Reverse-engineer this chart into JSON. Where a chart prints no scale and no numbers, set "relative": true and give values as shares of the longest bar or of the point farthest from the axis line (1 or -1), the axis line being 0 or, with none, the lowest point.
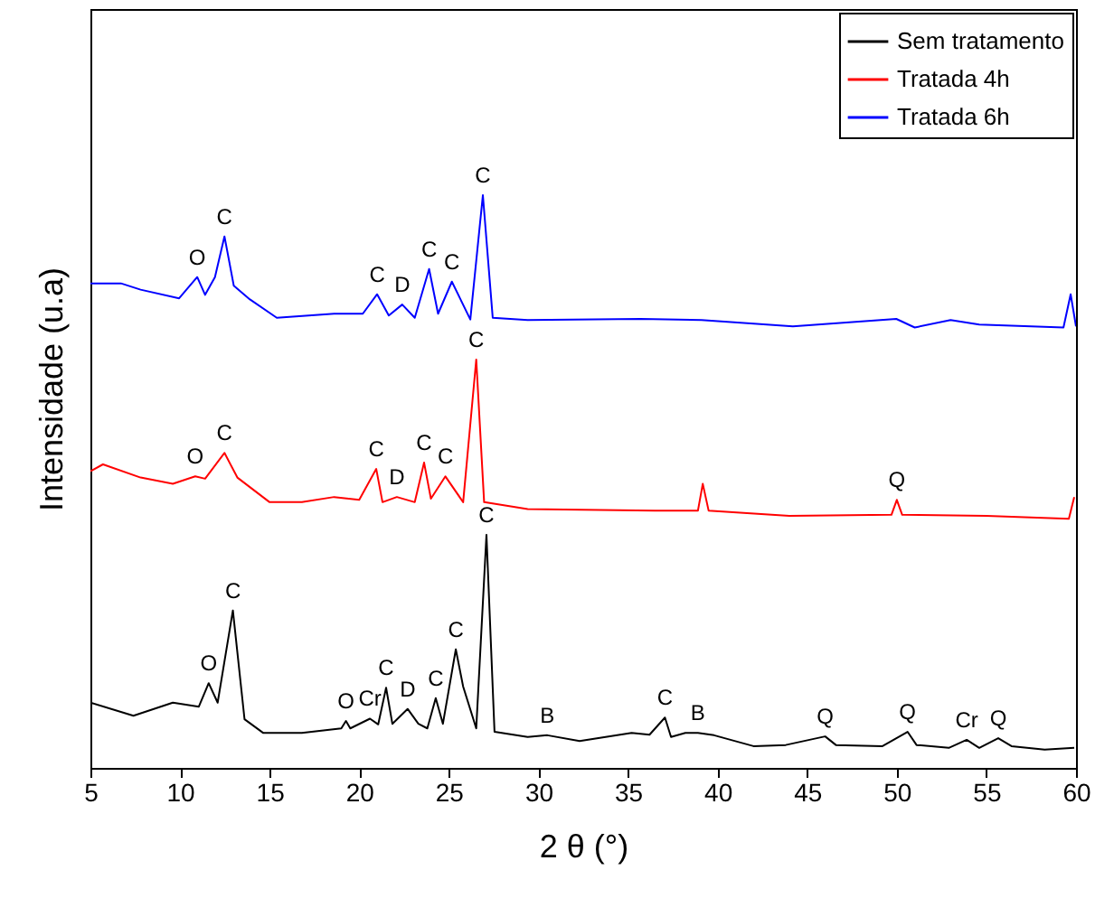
{
  "chart_data": {
    "type": "line",
    "relative": true,
    "xlabel": "2 θ (°)",
    "ylabel": "Intensidade (u.a)",
    "xlim": [
      5,
      60
    ],
    "xticks": [
      5,
      10,
      15,
      20,
      25,
      30,
      35,
      40,
      45,
      50,
      55,
      60
    ],
    "legend": "top right",
    "grid": false,
    "series": [
      {
        "name": "Sem tratamento",
        "color": "#000000",
        "x": [
          5,
          7.4,
          9.6,
          11.05,
          11.6,
          12.1,
          12.95,
          13.6,
          14.65,
          16.8,
          19.0,
          19.26,
          19.5,
          20.6,
          21.06,
          21.5,
          21.85,
          22.7,
          23.3,
          23.8,
          24.27,
          24.67,
          25.39,
          25.8,
          26.53,
          27.1,
          27.55,
          29.4,
          30.5,
          32.3,
          35.2,
          36.2,
          37.06,
          37.4,
          38.2,
          38.9,
          39.8,
          42.0,
          43.8,
          46.0,
          46.6,
          49.2,
          50.6,
          51.1,
          52.9,
          53.9,
          54.6,
          55.66,
          56.4,
          58.25,
          59.9
        ],
        "values": [
          0.114,
          0.091,
          0.114,
          0.107,
          0.148,
          0.114,
          0.275,
          0.085,
          0.061,
          0.061,
          0.069,
          0.082,
          0.069,
          0.086,
          0.076,
          0.14,
          0.077,
          0.103,
          0.077,
          0.069,
          0.122,
          0.077,
          0.207,
          0.142,
          0.069,
          0.407,
          0.063,
          0.054,
          0.057,
          0.047,
          0.061,
          0.058,
          0.088,
          0.054,
          0.061,
          0.061,
          0.057,
          0.038,
          0.04,
          0.055,
          0.04,
          0.038,
          0.063,
          0.04,
          0.035,
          0.049,
          0.035,
          0.052,
          0.038,
          0.032,
          0.035
        ]
      },
      {
        "name": "Tratada 4h",
        "color": "#ff0000",
        "x": [
          5,
          5.7,
          7.8,
          9.6,
          10.85,
          11.4,
          12.48,
          13.2,
          15.0,
          16.8,
          18.6,
          20.0,
          20.95,
          21.3,
          22.1,
          23.1,
          23.62,
          24.0,
          24.81,
          25.8,
          26.53,
          26.97,
          29.4,
          36.5,
          38.9,
          39.17,
          39.5,
          44.0,
          49.7,
          50.0,
          50.3,
          55.0,
          59.6,
          59.9
        ],
        "values": [
          0.518,
          0.53,
          0.507,
          0.496,
          0.509,
          0.505,
          0.55,
          0.507,
          0.464,
          0.464,
          0.473,
          0.468,
          0.522,
          0.464,
          0.473,
          0.464,
          0.533,
          0.47,
          0.509,
          0.464,
          0.713,
          0.464,
          0.452,
          0.449,
          0.449,
          0.496,
          0.449,
          0.44,
          0.442,
          0.468,
          0.442,
          0.44,
          0.435,
          0.473
        ]
      },
      {
        "name": "Tratada 6h",
        "color": "#0000ff",
        "x": [
          5,
          6.7,
          7.8,
          9.95,
          10.96,
          11.4,
          11.95,
          12.48,
          13.0,
          13.9,
          15.4,
          18.6,
          20.2,
          21.0,
          21.65,
          22.4,
          23.1,
          23.9,
          24.4,
          25.17,
          26.2,
          26.9,
          27.45,
          29.4,
          35.7,
          39.1,
          44.2,
          49.97,
          51.0,
          53.0,
          54.6,
          59.3,
          59.7,
          60
        ],
        "values": [
          0.846,
          0.846,
          0.835,
          0.82,
          0.857,
          0.826,
          0.857,
          0.928,
          0.842,
          0.818,
          0.786,
          0.793,
          0.793,
          0.827,
          0.79,
          0.809,
          0.786,
          0.871,
          0.793,
          0.849,
          0.783,
          1,
          0.786,
          0.782,
          0.784,
          0.782,
          0.771,
          0.784,
          0.769,
          0.782,
          0.774,
          0.769,
          0.827,
          0.771
        ]
      }
    ],
    "annotations": [
      {
        "text": "O",
        "x": 11.6,
        "y": 0.148
      },
      {
        "text": "C",
        "x": 12.95,
        "y": 0.275
      },
      {
        "text": "O",
        "x": 19.26,
        "y": 0.082
      },
      {
        "text": "Cr",
        "x": 20.6,
        "y": 0.086
      },
      {
        "text": "C",
        "x": 21.5,
        "y": 0.14
      },
      {
        "text": "D",
        "x": 22.7,
        "y": 0.103
      },
      {
        "text": "C",
        "x": 24.27,
        "y": 0.122
      },
      {
        "text": "C",
        "x": 25.39,
        "y": 0.207
      },
      {
        "text": "C",
        "x": 27.1,
        "y": 0.407
      },
      {
        "text": "B",
        "x": 30.5,
        "y": 0.057
      },
      {
        "text": "C",
        "x": 37.06,
        "y": 0.088
      },
      {
        "text": "B",
        "x": 38.9,
        "y": 0.061
      },
      {
        "text": "Q",
        "x": 46.0,
        "y": 0.055
      },
      {
        "text": "Q",
        "x": 50.6,
        "y": 0.063
      },
      {
        "text": "Cr",
        "x": 53.9,
        "y": 0.049
      },
      {
        "text": "Q",
        "x": 55.66,
        "y": 0.052
      },
      {
        "text": "O",
        "x": 10.85,
        "y": 0.509
      },
      {
        "text": "C",
        "x": 12.48,
        "y": 0.55
      },
      {
        "text": "C",
        "x": 20.95,
        "y": 0.522
      },
      {
        "text": "D",
        "x": 22.1,
        "y": 0.473
      },
      {
        "text": "C",
        "x": 23.62,
        "y": 0.533
      },
      {
        "text": "C",
        "x": 24.81,
        "y": 0.509
      },
      {
        "text": "C",
        "x": 26.53,
        "y": 0.713
      },
      {
        "text": "Q",
        "x": 50.0,
        "y": 0.468
      },
      {
        "text": "O",
        "x": 10.96,
        "y": 0.857
      },
      {
        "text": "C",
        "x": 12.48,
        "y": 0.928
      },
      {
        "text": "C",
        "x": 21.0,
        "y": 0.827
      },
      {
        "text": "D",
        "x": 22.4,
        "y": 0.809
      },
      {
        "text": "C",
        "x": 23.9,
        "y": 0.871
      },
      {
        "text": "C",
        "x": 25.17,
        "y": 0.849
      },
      {
        "text": "C",
        "x": 26.9,
        "y": 1
      }
    ]
  }
}
